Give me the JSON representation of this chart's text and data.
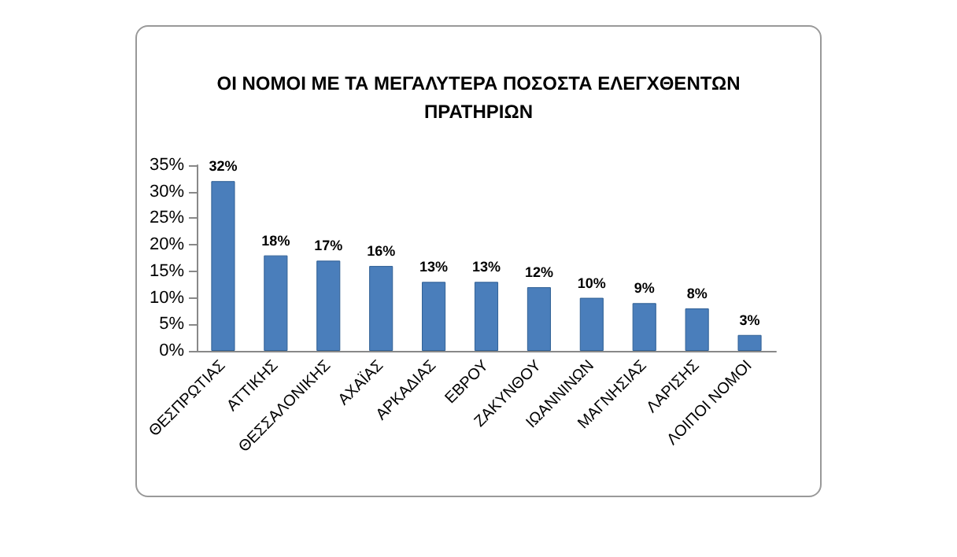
{
  "chart_data": {
    "type": "bar",
    "title": "ΟΙ ΝΟΜΟΙ ΜΕ ΤΑ ΜΕΓΑΛΥΤΕΡΑ ΠΟΣΟΣΤΑ ΕΛΕΓΧΘΕΝΤΩΝ\nΠΡΑΤΗΡΙΩΝ",
    "categories": [
      "ΘΕΣΠΡΩΤΙΑΣ",
      "ΑΤΤΙΚΗΣ",
      "ΘΕΣΣΑΛΟΝΙΚΗΣ",
      "ΑΧΑΪΑΣ",
      "ΑΡΚΑΔΙΑΣ",
      "ΕΒΡΟΥ",
      "ΖΑΚΥΝΘΟΥ",
      "ΙΩΑΝΝΙΝΩΝ",
      "ΜΑΓΝΗΣΙΑΣ",
      "ΛΑΡΙΣΗΣ",
      "ΛΟΙΠΟΙ ΝΟΜΟΙ"
    ],
    "values": [
      32,
      18,
      17,
      16,
      13,
      13,
      12,
      10,
      9,
      8,
      3
    ],
    "value_labels": [
      "32%",
      "18%",
      "17%",
      "16%",
      "13%",
      "13%",
      "12%",
      "10%",
      "9%",
      "8%",
      "3%"
    ],
    "color": "#4a7ebb",
    "ylim": [
      0,
      35
    ],
    "yticks": [
      {
        "value": 0,
        "label": "0%"
      },
      {
        "value": 5,
        "label": "5%"
      },
      {
        "value": 10,
        "label": "10%"
      },
      {
        "value": 15,
        "label": "15%"
      },
      {
        "value": 20,
        "label": "20%"
      },
      {
        "value": 25,
        "label": "25%"
      },
      {
        "value": 30,
        "label": "30%"
      },
      {
        "value": 35,
        "label": "35%"
      }
    ],
    "grid": false
  }
}
